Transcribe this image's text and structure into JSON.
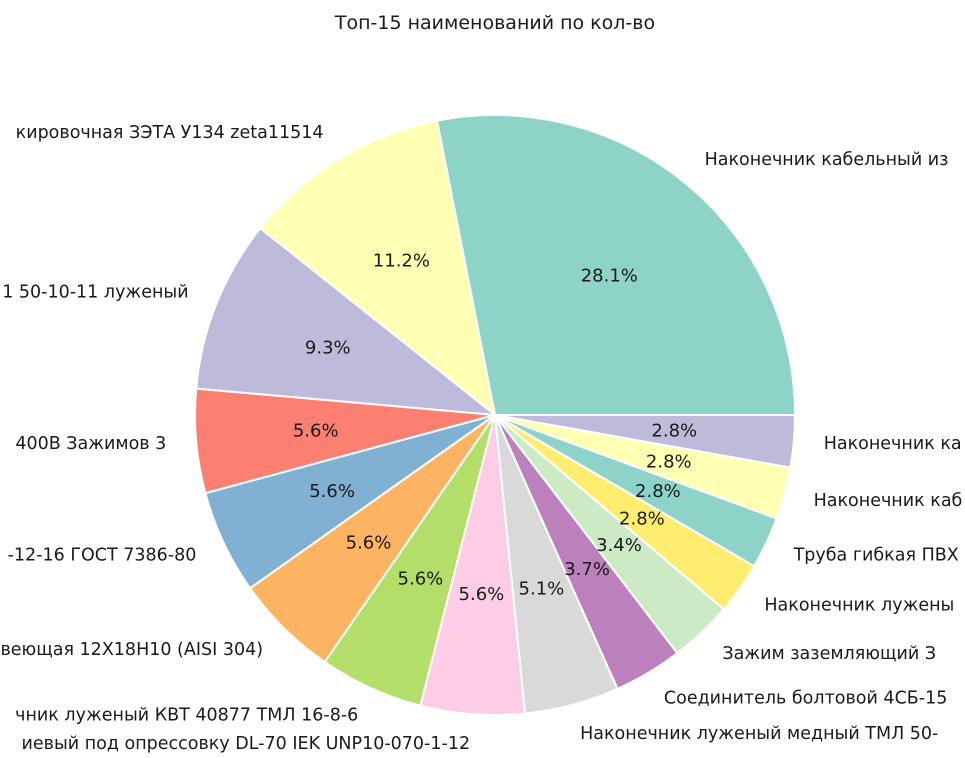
{
  "chart_data": {
    "type": "pie",
    "title": "Топ-15 наименований по кол-во",
    "start_angle_deg": 0,
    "direction": "counterclockwise",
    "slices": [
      {
        "label": "Наконечник кабельный из",
        "value": 28.1,
        "pct_label": "28.1%",
        "color": "#8dd3c7"
      },
      {
        "label": "кировочная ЗЭТА У134 zeta11514",
        "value": 11.2,
        "pct_label": "11.2%",
        "color": "#ffffb3"
      },
      {
        "label": "1 50-10-11 луженый",
        "value": 9.3,
        "pct_label": "9.3%",
        "color": "#bebada"
      },
      {
        "label": "400В Зажимов 3",
        "value": 5.6,
        "pct_label": "5.6%",
        "color": "#fb8072"
      },
      {
        "label": "-12-16 ГОСТ 7386-80",
        "value": 5.6,
        "pct_label": "5.6%",
        "color": "#80b1d3"
      },
      {
        "label": "веющая 12Х18Н10 (AISI 304)",
        "value": 5.6,
        "pct_label": "5.6%",
        "color": "#fdb462"
      },
      {
        "label": "чник луженый КВТ 40877 ТМЛ 16-8-6",
        "value": 5.6,
        "pct_label": "5.6%",
        "color": "#b3de69"
      },
      {
        "label": "иевый под опрессовку DL-70 IEK UNP10-070-1-12",
        "value": 5.6,
        "pct_label": "5.6%",
        "color": "#fccde5"
      },
      {
        "label": "Наконечник луженый медный ТМЛ 50-",
        "value": 5.1,
        "pct_label": "5.1%",
        "color": "#d9d9d9"
      },
      {
        "label": "Соединитель болтовой 4СБ-15",
        "value": 3.7,
        "pct_label": "3.7%",
        "color": "#bc80bd"
      },
      {
        "label": "Зажим заземляющий З",
        "value": 3.4,
        "pct_label": "3.4%",
        "color": "#ccebc5"
      },
      {
        "label": "Наконечник лужены",
        "value": 2.8,
        "pct_label": "2.8%",
        "color": "#ffed6f"
      },
      {
        "label": "Труба гибкая ПВХ",
        "value": 2.8,
        "pct_label": "2.8%",
        "color": "#8dd3c7"
      },
      {
        "label": "Наконечник каб",
        "value": 2.8,
        "pct_label": "2.8%",
        "color": "#ffffb3"
      },
      {
        "label": "Наконечник ка",
        "value": 2.8,
        "pct_label": "2.8%",
        "color": "#bebada"
      }
    ]
  }
}
